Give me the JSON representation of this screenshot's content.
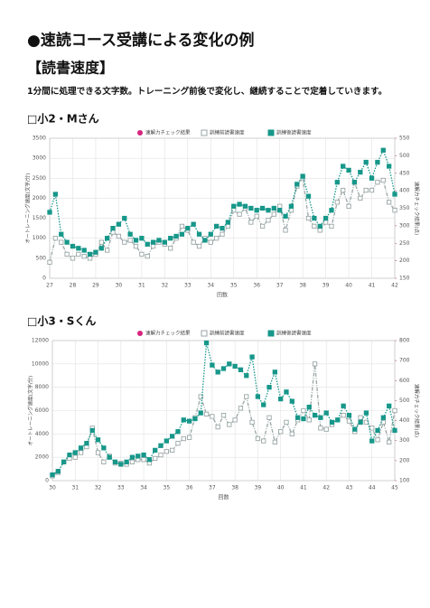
{
  "title": "●速読コース受講による変化の例",
  "section": "【読書速度】",
  "description": "1分間に処理できる文字数。トレーニング前後で変化し、継続することで定着していきます。",
  "chart_data": [
    {
      "type": "line",
      "title": "□小2・Mさん",
      "xlabel": "回数",
      "ylabel": "オートレーニング速度(文字/分)",
      "y2label": "速解力チェック結果(点)",
      "x": [
        27,
        27.25,
        27.5,
        27.75,
        28,
        28.25,
        28.5,
        28.75,
        29,
        29.25,
        29.5,
        29.75,
        30,
        30.25,
        30.5,
        30.75,
        31,
        31.25,
        31.5,
        31.75,
        32,
        32.25,
        32.5,
        32.75,
        33,
        33.25,
        33.5,
        33.75,
        34,
        34.25,
        34.5,
        34.75,
        35,
        35.25,
        35.5,
        35.75,
        36,
        36.25,
        36.5,
        36.75,
        37,
        37.25,
        37.5,
        37.75,
        38,
        38.25,
        38.5,
        38.75,
        39,
        39.25,
        39.5,
        39.75,
        40,
        40.25,
        40.5,
        40.75,
        41,
        41.25,
        41.5,
        41.75,
        42
      ],
      "series": [
        {
          "name": "速解力チェック結果",
          "color": "#d6247f",
          "axis": "y2",
          "values": [
            null,
            null,
            null,
            null,
            null,
            null,
            null,
            null,
            null,
            null,
            null,
            null,
            null,
            null,
            null,
            null,
            null,
            null,
            null,
            null,
            null,
            null,
            null,
            null,
            null,
            null,
            null,
            null,
            null,
            null,
            null,
            null,
            null,
            null,
            null,
            null,
            null,
            null,
            null,
            null,
            null,
            null,
            null,
            null,
            null,
            null,
            null,
            null,
            null,
            null,
            null,
            null,
            null,
            null,
            null,
            null,
            null,
            null,
            null,
            null,
            null
          ]
        },
        {
          "name": "訓練前読書速度",
          "color": "#9aa6a6",
          "values": [
            400,
            1000,
            900,
            600,
            500,
            600,
            550,
            500,
            600,
            900,
            700,
            1150,
            1050,
            900,
            950,
            800,
            600,
            550,
            800,
            900,
            850,
            750,
            1000,
            1300,
            1200,
            900,
            800,
            1000,
            900,
            1000,
            1100,
            1300,
            1700,
            1600,
            1750,
            1400,
            1550,
            1300,
            1450,
            1600,
            1800,
            1200,
            1700,
            2300,
            2500,
            1500,
            1300,
            1200,
            1400,
            1300,
            1900,
            2200,
            1800,
            2400,
            2000,
            2200,
            2200,
            2400,
            2450,
            1900,
            1700
          ]
        },
        {
          "name": "訓練後読書速度",
          "color": "#17978a",
          "values": [
            1650,
            2100,
            1100,
            900,
            800,
            750,
            700,
            600,
            650,
            750,
            1000,
            1250,
            1350,
            1500,
            1100,
            950,
            1000,
            850,
            900,
            950,
            900,
            1000,
            1050,
            1100,
            1250,
            1350,
            1100,
            950,
            1100,
            1300,
            1250,
            1400,
            1800,
            1850,
            1800,
            1750,
            1700,
            1750,
            1700,
            1750,
            1700,
            1550,
            1800,
            2350,
            2550,
            2050,
            1500,
            1300,
            1500,
            1700,
            2400,
            2800,
            2700,
            2400,
            2650,
            2900,
            2500,
            2900,
            3200,
            2800,
            2100
          ]
        }
      ],
      "xlim": [
        27,
        42
      ],
      "xticks": [
        27,
        28,
        29,
        30,
        31,
        32,
        33,
        34,
        35,
        36,
        37,
        38,
        39,
        40,
        41,
        42
      ],
      "ylim": [
        0,
        3500
      ],
      "yticks": [
        0,
        500,
        1000,
        1500,
        2000,
        2500,
        3000,
        3500
      ],
      "y2lim": [
        150,
        550
      ],
      "y2ticks": [
        150,
        200,
        250,
        300,
        350,
        400,
        450,
        500,
        550
      ],
      "grid": true
    },
    {
      "type": "line",
      "title": "□小3・Sくん",
      "xlabel": "回数",
      "ylabel": "オートレーニング速度(文字/分)",
      "y2label": "速解力チェック結果(点)",
      "x": [
        30,
        30.25,
        30.5,
        30.75,
        31,
        31.25,
        31.5,
        31.75,
        32,
        32.25,
        32.5,
        32.75,
        33,
        33.25,
        33.5,
        33.75,
        34,
        34.25,
        34.5,
        34.75,
        35,
        35.25,
        35.5,
        35.75,
        36,
        36.25,
        36.5,
        36.75,
        37,
        37.25,
        37.5,
        37.75,
        38,
        38.25,
        38.5,
        38.75,
        39,
        39.25,
        39.5,
        39.75,
        40,
        40.25,
        40.5,
        40.75,
        41,
        41.25,
        41.5,
        41.75,
        42,
        42.25,
        42.5,
        42.75,
        43,
        43.25,
        43.5,
        43.75,
        44,
        44.25,
        44.5,
        44.75,
        45
      ],
      "series": [
        {
          "name": "速解力チェック結果",
          "color": "#d6247f",
          "axis": "y2",
          "values": [
            null,
            null,
            null,
            null,
            null,
            null,
            null,
            null,
            null,
            null,
            null,
            null,
            null,
            null,
            null,
            null,
            null,
            null,
            null,
            null,
            null,
            null,
            null,
            null,
            null,
            null,
            null,
            null,
            null,
            null,
            null,
            null,
            null,
            null,
            null,
            null,
            null,
            null,
            null,
            null,
            null,
            null,
            null,
            null,
            null,
            null,
            null,
            null,
            null,
            null,
            null,
            null,
            null,
            null,
            null,
            null,
            null,
            null,
            null,
            null,
            null
          ]
        },
        {
          "name": "訓練前読書速度",
          "color": "#9aa6a6",
          "values": [
            400,
            700,
            1600,
            1900,
            2000,
            2400,
            2900,
            4500,
            2400,
            1600,
            2100,
            1500,
            1500,
            1400,
            1600,
            1800,
            1800,
            1500,
            1900,
            2200,
            2500,
            2600,
            3200,
            3600,
            3700,
            5400,
            7200,
            5700,
            5500,
            4600,
            5600,
            4800,
            5200,
            6200,
            7200,
            5000,
            3600,
            3400,
            5400,
            3300,
            4200,
            5000,
            4000,
            5200,
            6000,
            5200,
            10000,
            4500,
            4400,
            4800,
            5200,
            5600,
            5100,
            4200,
            5400,
            5000,
            4500,
            3500,
            5000,
            3300,
            6000
          ]
        },
        {
          "name": "訓練後読書速度",
          "color": "#17978a",
          "values": [
            500,
            800,
            1600,
            2200,
            2400,
            2800,
            3200,
            4300,
            3500,
            2800,
            2000,
            1600,
            1400,
            1600,
            2000,
            2100,
            2200,
            1800,
            2600,
            3000,
            3400,
            3800,
            4200,
            5200,
            5100,
            5300,
            5800,
            11800,
            9900,
            9300,
            9600,
            10000,
            9800,
            9500,
            9000,
            10600,
            7200,
            6500,
            8000,
            9300,
            7000,
            7600,
            6800,
            5400,
            5300,
            6300,
            5600,
            5400,
            5800,
            5000,
            5200,
            6400,
            5600,
            4400,
            5000,
            5800,
            3400,
            4300,
            5400,
            6400,
            4300
          ]
        }
      ],
      "xlim": [
        30,
        45
      ],
      "xticks": [
        30,
        31,
        32,
        33,
        34,
        35,
        36,
        37,
        38,
        39,
        40,
        41,
        42,
        43,
        44,
        45
      ],
      "ylim": [
        0,
        12000
      ],
      "yticks": [
        0,
        2000,
        4000,
        6000,
        8000,
        10000,
        12000
      ],
      "y2lim": [
        100,
        800
      ],
      "y2ticks": [
        100,
        200,
        300,
        400,
        500,
        600,
        700,
        800
      ],
      "grid": true
    }
  ]
}
